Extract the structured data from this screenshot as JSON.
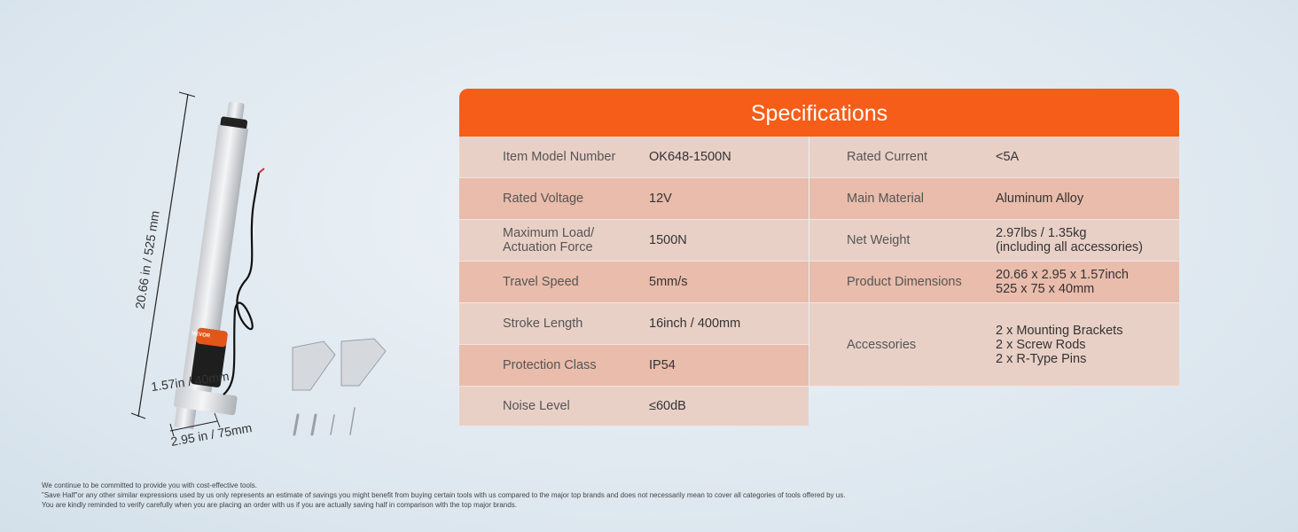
{
  "product_image": {
    "logo": "VEVOR",
    "dimensions": {
      "length": "20.66 in / 525 mm",
      "width": "2.95 in / 75mm",
      "depth": "1.57in / 40mm"
    }
  },
  "specifications": {
    "title": "Specifications",
    "left": [
      {
        "label": "Item Model Number",
        "value": "OK648-1500N"
      },
      {
        "label": "Rated Voltage",
        "value": "12V"
      },
      {
        "label": "Maximum Load/\nActuation Force",
        "value": "1500N"
      },
      {
        "label": "Travel Speed",
        "value": "5mm/s"
      },
      {
        "label": "Stroke Length",
        "value": "16inch / 400mm"
      },
      {
        "label": "Protection Class",
        "value": "IP54"
      },
      {
        "label": "Noise Level",
        "value": "≤60dB"
      }
    ],
    "right": [
      {
        "label": "Rated Current",
        "value": "<5A"
      },
      {
        "label": "Main Material",
        "value": "Aluminum Alloy"
      },
      {
        "label": "Net Weight",
        "value": "2.97lbs / 1.35kg\n(including all accessories)"
      },
      {
        "label": "Product Dimensions",
        "value": "20.66 x 2.95 x 1.57inch\n525 x 75 x 40mm"
      },
      {
        "label": "Accessories",
        "value": "2 x Mounting Brackets\n2 x Screw Rods\n2 x R-Type Pins"
      }
    ],
    "colors": {
      "header": "#f55d18",
      "row_light": "#e9d0c7",
      "row_dark": "#e9bcab"
    }
  },
  "disclaimer": [
    "We continue to be committed to provide you with cost-effective tools.",
    "\"Save Half\"or any other similar expressions used by us only represents an estimate of savings you might benefit from buying certain tools with us compared to the major top brands and does not necessarily mean to cover all categories of tools offered by us.",
    "You are kindly reminded to verify carefully when you are placing an order with us if you are actually saving half in comparison with the top major brands."
  ]
}
